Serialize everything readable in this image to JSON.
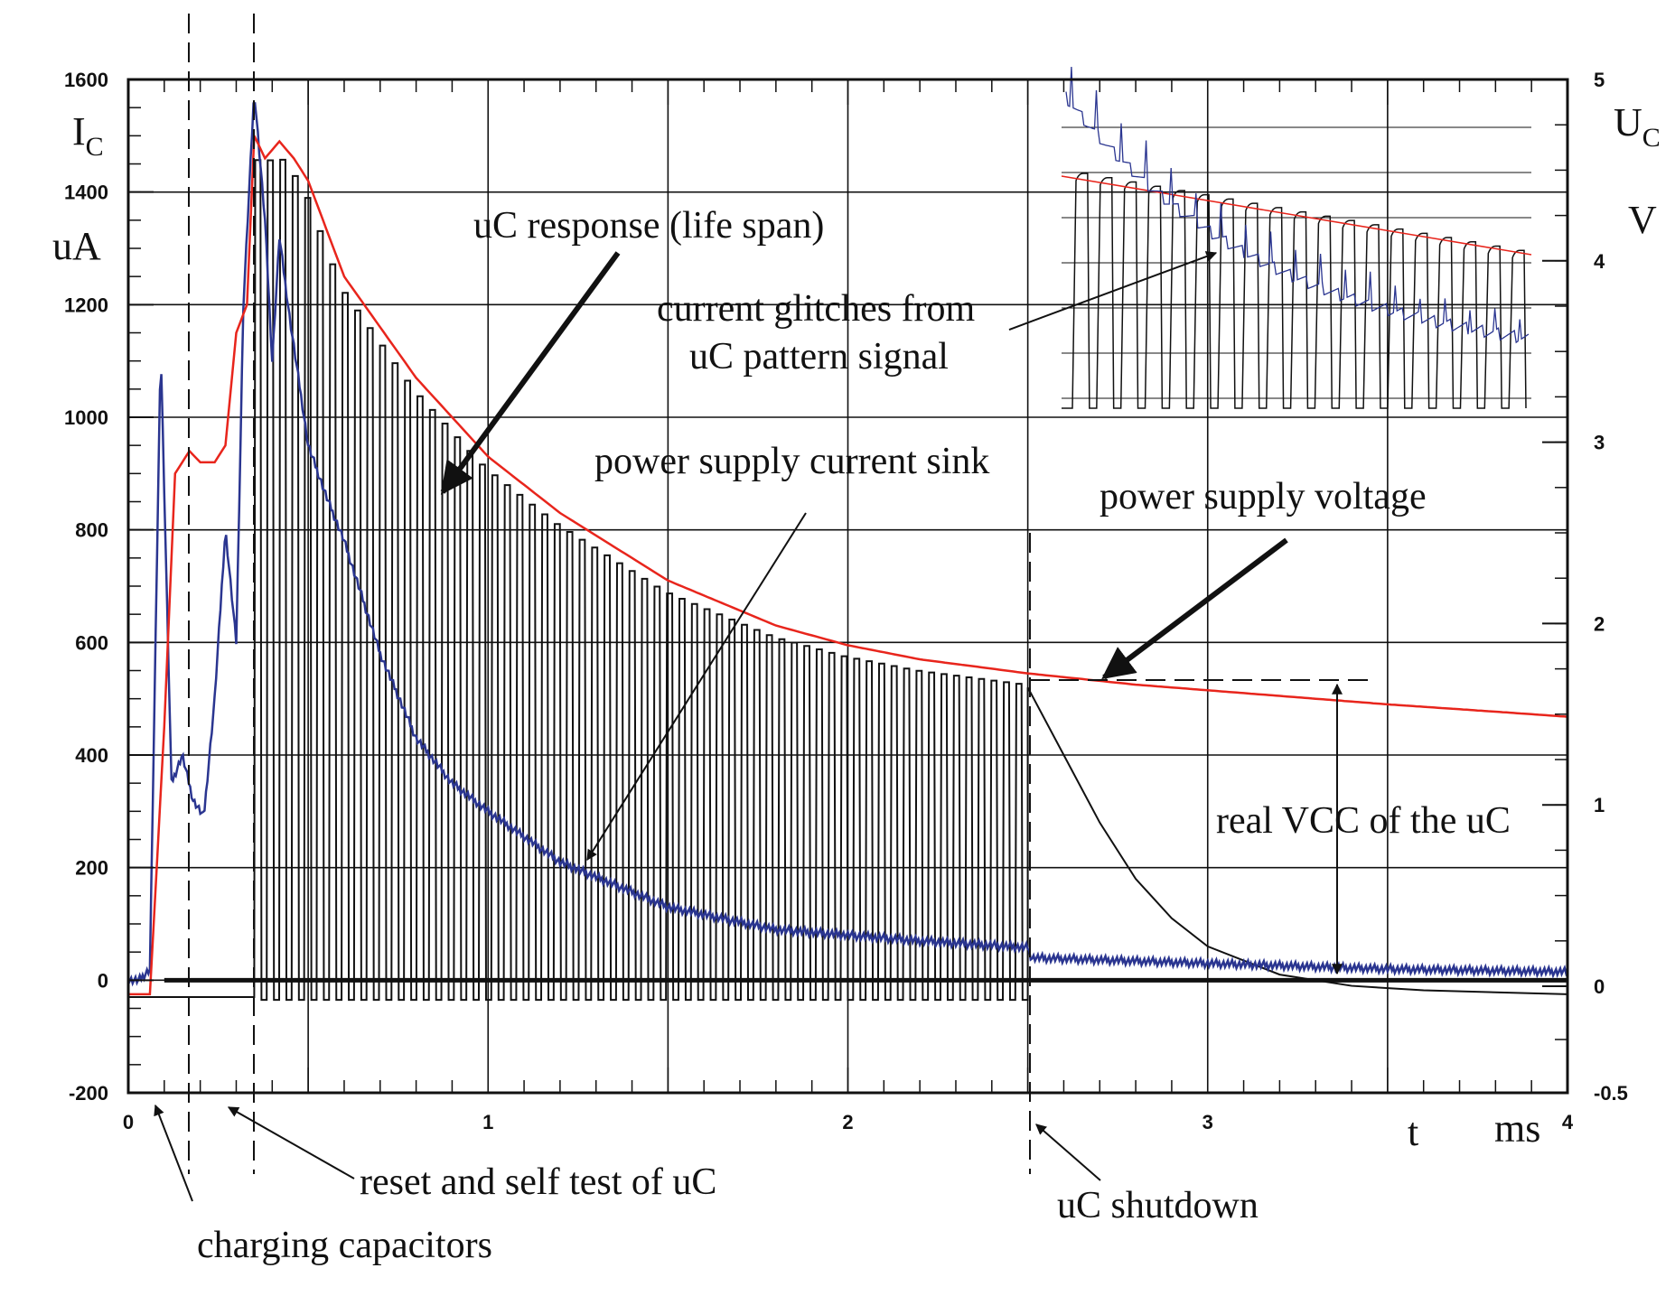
{
  "chart_data": {
    "type": "line",
    "x_axis": {
      "range": [
        0,
        4
      ],
      "ticks": [
        "0",
        "1",
        "2",
        "3",
        "4"
      ],
      "symbol": "t",
      "unit": "ms"
    },
    "y_left": {
      "range": [
        -200,
        1600
      ],
      "ticks": [
        "1600",
        "1400",
        "1200",
        "1000",
        "800",
        "600",
        "400",
        "200",
        "0",
        "-200"
      ],
      "symbol": "I",
      "subscript": "C",
      "unit": "uA"
    },
    "y_right": {
      "ticks": [
        "5",
        "4",
        "3",
        "2",
        "1",
        "0",
        "-0.5"
      ],
      "symbol": "U",
      "subscript": "C",
      "unit": "V"
    },
    "grid": true,
    "series_colors": {
      "voltage": "#e8251c",
      "current": "#2a3590",
      "uc_response": "#111111"
    },
    "series": [
      {
        "key": "voltage",
        "x": [
          0,
          0.06,
          0.1,
          0.13,
          0.17,
          0.2,
          0.24,
          0.27,
          0.3,
          0.33,
          0.35,
          0.38,
          0.42,
          0.46,
          0.5,
          0.6,
          0.8,
          1.0,
          1.2,
          1.5,
          1.8,
          2.0,
          2.2,
          2.5,
          2.8,
          3.0,
          3.2,
          3.5,
          3.8,
          4.0
        ],
        "y": [
          -25,
          -25,
          450,
          900,
          940,
          920,
          920,
          950,
          1150,
          1200,
          1500,
          1460,
          1490,
          1460,
          1420,
          1250,
          1070,
          930,
          830,
          710,
          630,
          595,
          570,
          545,
          525,
          515,
          505,
          490,
          477,
          468
        ]
      },
      {
        "key": "current",
        "x": [
          0,
          0.03,
          0.06,
          0.09,
          0.12,
          0.15,
          0.18,
          0.21,
          0.24,
          0.27,
          0.3,
          0.32,
          0.35,
          0.38,
          0.4,
          0.42,
          0.45,
          0.5,
          0.55,
          0.6,
          0.7,
          0.8,
          0.9,
          1.0,
          1.2,
          1.5,
          1.8,
          2.0,
          2.2,
          2.5,
          2.51,
          3.0,
          3.5,
          4.0
        ],
        "y": [
          0,
          0,
          20,
          1130,
          350,
          400,
          320,
          290,
          500,
          800,
          600,
          1200,
          1580,
          1350,
          1100,
          1320,
          1170,
          950,
          860,
          780,
          580,
          430,
          350,
          300,
          210,
          130,
          90,
          80,
          70,
          58,
          40,
          30,
          20,
          15
        ]
      }
    ],
    "pulse_train": {
      "key": "uc_response",
      "x_start": 0.35,
      "x_end": 2.5,
      "count": 62,
      "low": -35,
      "high_envelope": "voltage",
      "after_shutdown": {
        "x": [
          2.5,
          2.6,
          2.7,
          2.8,
          2.9,
          3.0,
          3.2,
          3.4,
          3.6,
          4.0
        ],
        "y": [
          520,
          400,
          280,
          180,
          110,
          60,
          10,
          -10,
          -18,
          -25
        ]
      }
    },
    "inset": {
      "label": "current glitches from uC pattern signal"
    },
    "annotations": {
      "uc_response": "uC response (life span)",
      "current_glitches_1": "current glitches from",
      "current_glitches_2": "uC pattern signal",
      "current_sink": "power supply current sink",
      "supply_voltage": "power supply voltage",
      "real_vcc": "real VCC of the uC",
      "reset": "reset and self test of uC",
      "charging": "charging capacitors",
      "shutdown": "uC shutdown"
    }
  }
}
